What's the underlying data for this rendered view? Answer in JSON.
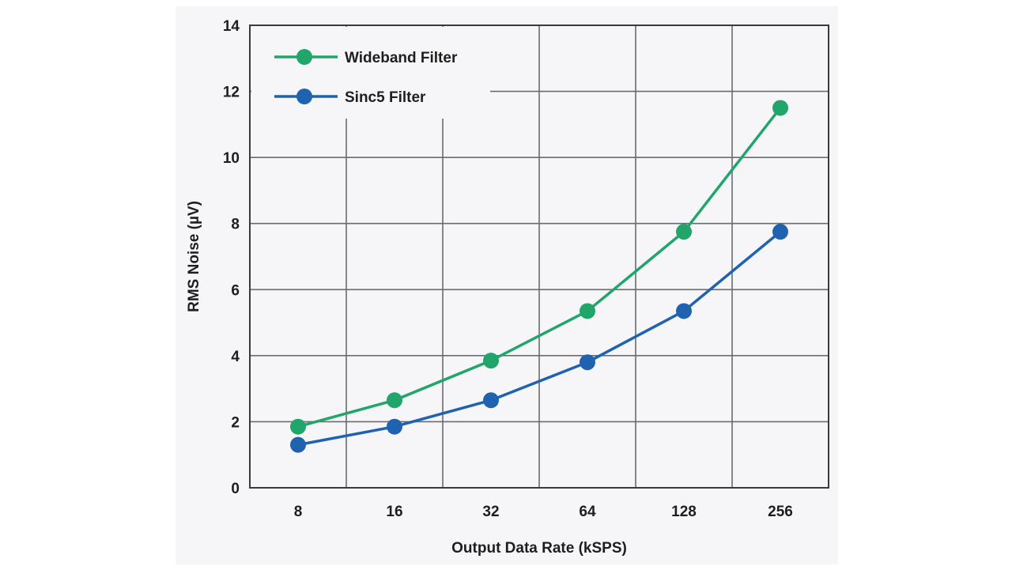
{
  "chart_data": {
    "type": "line",
    "categories": [
      "8",
      "16",
      "32",
      "64",
      "128",
      "256"
    ],
    "series": [
      {
        "name": "Wideband Filter",
        "color": "#21a56a",
        "values": [
          1.85,
          2.65,
          3.85,
          5.35,
          7.75,
          11.5
        ]
      },
      {
        "name": "Sinc5 Filter",
        "color": "#1f63b0",
        "values": [
          1.3,
          1.85,
          2.65,
          3.8,
          5.35,
          7.75
        ]
      }
    ],
    "xlabel": "Output Data Rate (kSPS)",
    "ylabel": "RMS Noise (µV)",
    "ylim": [
      0,
      14
    ],
    "yticks": [
      "0",
      "2",
      "4",
      "6",
      "8",
      "10",
      "12",
      "14"
    ],
    "grid": true,
    "legend": "top-left"
  }
}
